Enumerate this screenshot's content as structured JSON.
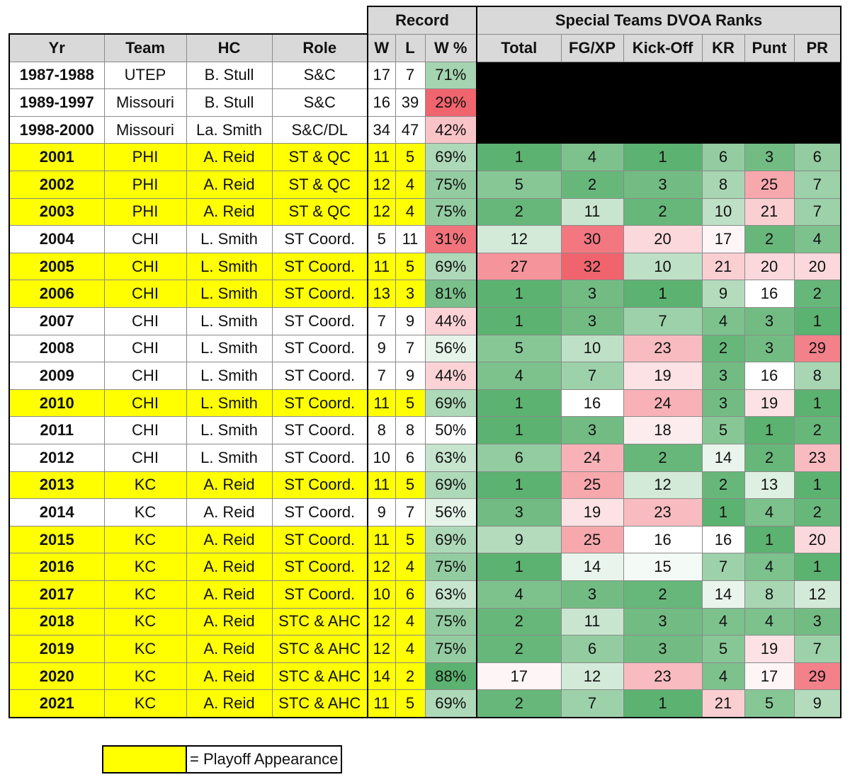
{
  "headers": {
    "group_record": "Record",
    "group_dvoa": "Special Teams DVOA Ranks",
    "columns": [
      "Yr",
      "Team",
      "HC",
      "Role",
      "W",
      "L",
      "W %",
      "Total",
      "FG/XP",
      "Kick-Off",
      "KR",
      "Punt",
      "PR"
    ]
  },
  "rows": [
    {
      "yr": "1987-1988",
      "team": "UTEP",
      "hc": "B. Stull",
      "role": "S&C",
      "w": "17",
      "l": "7",
      "pct": "71%",
      "playoff": false,
      "dvoa": null
    },
    {
      "yr": "1989-1997",
      "team": "Missouri",
      "hc": "B. Stull",
      "role": "S&C",
      "w": "16",
      "l": "39",
      "pct": "29%",
      "playoff": false,
      "dvoa": null
    },
    {
      "yr": "1998-2000",
      "team": "Missouri",
      "hc": "La. Smith",
      "role": "S&C/DL",
      "w": "34",
      "l": "47",
      "pct": "42%",
      "playoff": false,
      "dvoa": null
    },
    {
      "yr": "2001",
      "team": "PHI",
      "hc": "A. Reid",
      "role": "ST & QC",
      "w": "11",
      "l": "5",
      "pct": "69%",
      "playoff": true,
      "dvoa": [
        "1",
        "4",
        "1",
        "6",
        "3",
        "6"
      ]
    },
    {
      "yr": "2002",
      "team": "PHI",
      "hc": "A. Reid",
      "role": "ST & QC",
      "w": "12",
      "l": "4",
      "pct": "75%",
      "playoff": true,
      "dvoa": [
        "5",
        "2",
        "3",
        "8",
        "25",
        "7"
      ]
    },
    {
      "yr": "2003",
      "team": "PHI",
      "hc": "A. Reid",
      "role": "ST & QC",
      "w": "12",
      "l": "4",
      "pct": "75%",
      "playoff": true,
      "dvoa": [
        "2",
        "11",
        "2",
        "10",
        "21",
        "7"
      ]
    },
    {
      "yr": "2004",
      "team": "CHI",
      "hc": "L. Smith",
      "role": "ST Coord.",
      "w": "5",
      "l": "11",
      "pct": "31%",
      "playoff": false,
      "dvoa": [
        "12",
        "30",
        "20",
        "17",
        "2",
        "4"
      ]
    },
    {
      "yr": "2005",
      "team": "CHI",
      "hc": "L. Smith",
      "role": "ST Coord.",
      "w": "11",
      "l": "5",
      "pct": "69%",
      "playoff": true,
      "dvoa": [
        "27",
        "32",
        "10",
        "21",
        "20",
        "20"
      ]
    },
    {
      "yr": "2006",
      "team": "CHI",
      "hc": "L. Smith",
      "role": "ST Coord.",
      "w": "13",
      "l": "3",
      "pct": "81%",
      "playoff": true,
      "dvoa": [
        "1",
        "3",
        "1",
        "9",
        "16",
        "2"
      ]
    },
    {
      "yr": "2007",
      "team": "CHI",
      "hc": "L. Smith",
      "role": "ST Coord.",
      "w": "7",
      "l": "9",
      "pct": "44%",
      "playoff": false,
      "dvoa": [
        "1",
        "3",
        "7",
        "4",
        "3",
        "1"
      ]
    },
    {
      "yr": "2008",
      "team": "CHI",
      "hc": "L. Smith",
      "role": "ST Coord.",
      "w": "9",
      "l": "7",
      "pct": "56%",
      "playoff": false,
      "dvoa": [
        "5",
        "10",
        "23",
        "2",
        "3",
        "29"
      ]
    },
    {
      "yr": "2009",
      "team": "CHI",
      "hc": "L. Smith",
      "role": "ST Coord.",
      "w": "7",
      "l": "9",
      "pct": "44%",
      "playoff": false,
      "dvoa": [
        "4",
        "7",
        "19",
        "3",
        "16",
        "8"
      ]
    },
    {
      "yr": "2010",
      "team": "CHI",
      "hc": "L. Smith",
      "role": "ST Coord.",
      "w": "11",
      "l": "5",
      "pct": "69%",
      "playoff": true,
      "dvoa": [
        "1",
        "16",
        "24",
        "3",
        "19",
        "1"
      ]
    },
    {
      "yr": "2011",
      "team": "CHI",
      "hc": "L. Smith",
      "role": "ST Coord.",
      "w": "8",
      "l": "8",
      "pct": "50%",
      "playoff": false,
      "dvoa": [
        "1",
        "3",
        "18",
        "5",
        "1",
        "2"
      ]
    },
    {
      "yr": "2012",
      "team": "CHI",
      "hc": "L. Smith",
      "role": "ST Coord.",
      "w": "10",
      "l": "6",
      "pct": "63%",
      "playoff": false,
      "dvoa": [
        "6",
        "24",
        "2",
        "14",
        "2",
        "23"
      ]
    },
    {
      "yr": "2013",
      "team": "KC",
      "hc": "A. Reid",
      "role": "ST Coord.",
      "w": "11",
      "l": "5",
      "pct": "69%",
      "playoff": true,
      "dvoa": [
        "1",
        "25",
        "12",
        "2",
        "13",
        "1"
      ]
    },
    {
      "yr": "2014",
      "team": "KC",
      "hc": "A. Reid",
      "role": "ST Coord.",
      "w": "9",
      "l": "7",
      "pct": "56%",
      "playoff": false,
      "dvoa": [
        "3",
        "19",
        "23",
        "1",
        "4",
        "2"
      ]
    },
    {
      "yr": "2015",
      "team": "KC",
      "hc": "A. Reid",
      "role": "ST Coord.",
      "w": "11",
      "l": "5",
      "pct": "69%",
      "playoff": true,
      "dvoa": [
        "9",
        "25",
        "16",
        "16",
        "1",
        "20"
      ]
    },
    {
      "yr": "2016",
      "team": "KC",
      "hc": "A. Reid",
      "role": "ST Coord.",
      "w": "12",
      "l": "4",
      "pct": "75%",
      "playoff": true,
      "dvoa": [
        "1",
        "14",
        "15",
        "7",
        "4",
        "1"
      ]
    },
    {
      "yr": "2017",
      "team": "KC",
      "hc": "A. Reid",
      "role": "ST Coord.",
      "w": "10",
      "l": "6",
      "pct": "63%",
      "playoff": true,
      "dvoa": [
        "4",
        "3",
        "2",
        "14",
        "8",
        "12"
      ]
    },
    {
      "yr": "2018",
      "team": "KC",
      "hc": "A. Reid",
      "role": "STC & AHC",
      "w": "12",
      "l": "4",
      "pct": "75%",
      "playoff": true,
      "dvoa": [
        "2",
        "11",
        "3",
        "4",
        "4",
        "3"
      ]
    },
    {
      "yr": "2019",
      "team": "KC",
      "hc": "A. Reid",
      "role": "STC & AHC",
      "w": "12",
      "l": "4",
      "pct": "75%",
      "playoff": true,
      "dvoa": [
        "2",
        "6",
        "3",
        "5",
        "19",
        "7"
      ]
    },
    {
      "yr": "2020",
      "team": "KC",
      "hc": "A. Reid",
      "role": "STC & AHC",
      "w": "14",
      "l": "2",
      "pct": "88%",
      "playoff": true,
      "dvoa": [
        "17",
        "12",
        "23",
        "4",
        "17",
        "29"
      ]
    },
    {
      "yr": "2021",
      "team": "KC",
      "hc": "A. Reid",
      "role": "STC & AHC",
      "w": "11",
      "l": "5",
      "pct": "69%",
      "playoff": true,
      "dvoa": [
        "2",
        "7",
        "1",
        "21",
        "5",
        "9"
      ]
    }
  ],
  "legend": {
    "label": "= Playoff Appearance",
    "swatch_color": "#ffff00"
  },
  "colors": {
    "playoff": "#ffff00",
    "header": "#d9d9d9",
    "good": "#5cb270",
    "bad": "#f0646e",
    "neutral": "#ffffff"
  }
}
